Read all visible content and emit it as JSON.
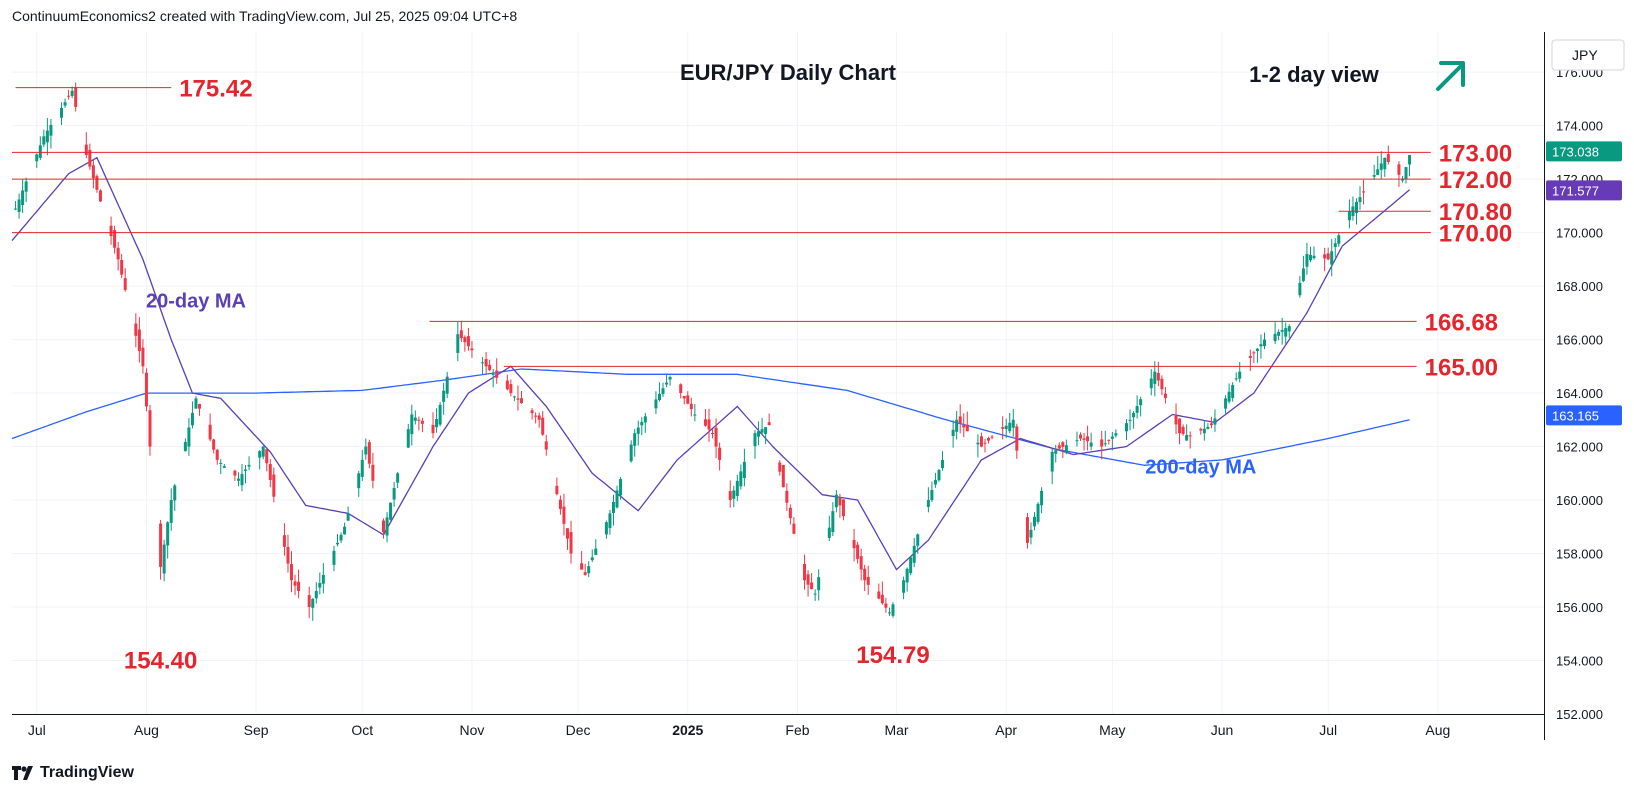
{
  "header": {
    "text": "ContinuumEconomics2 created with TradingView.com, Jul 25, 2025 09:04 UTC+8"
  },
  "footer": {
    "brand": "TradingView"
  },
  "chart_data": {
    "type": "candlestick",
    "title": "EUR/JPY Daily Chart",
    "view_label": "1-2 day view",
    "view_direction": "up",
    "currency_label": "JPY",
    "ylim": [
      152,
      177.5
    ],
    "y_ticks": [
      "152.000",
      "154.000",
      "156.000",
      "158.000",
      "160.000",
      "162.000",
      "164.000",
      "166.000",
      "168.000",
      "170.000",
      "172.000",
      "174.000",
      "176.000"
    ],
    "x_ticks": [
      {
        "label": "Jul",
        "date": "2024-07-01"
      },
      {
        "label": "Aug",
        "date": "2024-08-01"
      },
      {
        "label": "Sep",
        "date": "2024-09-01"
      },
      {
        "label": "Oct",
        "date": "2024-10-01"
      },
      {
        "label": "Nov",
        "date": "2024-11-01"
      },
      {
        "label": "Dec",
        "date": "2024-12-01"
      },
      {
        "label": "2025",
        "date": "2025-01-01",
        "bold": true
      },
      {
        "label": "Feb",
        "date": "2025-02-01"
      },
      {
        "label": "Mar",
        "date": "2025-03-01"
      },
      {
        "label": "Apr",
        "date": "2025-04-01"
      },
      {
        "label": "May",
        "date": "2025-05-01"
      },
      {
        "label": "Jun",
        "date": "2025-06-01"
      },
      {
        "label": "Jul",
        "date": "2025-07-01"
      },
      {
        "label": "Aug",
        "date": "2025-08-01"
      }
    ],
    "x_start": "2024-06-24",
    "x_end": "2025-08-31",
    "price_path": [
      [
        "2024-06-25",
        170.9
      ],
      [
        "2024-07-03",
        173.6
      ],
      [
        "2024-07-11",
        175.3
      ],
      [
        "2024-07-15",
        172.9
      ],
      [
        "2024-07-24",
        169.0
      ],
      [
        "2024-07-31",
        165.0
      ],
      [
        "2024-08-05",
        157.5
      ],
      [
        "2024-08-08",
        160.0
      ],
      [
        "2024-08-15",
        163.8
      ],
      [
        "2024-08-21",
        161.5
      ],
      [
        "2024-08-27",
        160.8
      ],
      [
        "2024-09-03",
        162.0
      ],
      [
        "2024-09-11",
        157.0
      ],
      [
        "2024-09-16",
        156.0
      ],
      [
        "2024-09-26",
        159.0
      ],
      [
        "2024-10-02",
        162.0
      ],
      [
        "2024-10-07",
        158.8
      ],
      [
        "2024-10-15",
        163.2
      ],
      [
        "2024-10-21",
        162.5
      ],
      [
        "2024-10-28",
        166.2
      ],
      [
        "2024-11-05",
        165.0
      ],
      [
        "2024-11-12",
        164.0
      ],
      [
        "2024-11-20",
        163.0
      ],
      [
        "2024-11-29",
        158.0
      ],
      [
        "2024-12-03",
        157.2
      ],
      [
        "2024-12-10",
        159.5
      ],
      [
        "2024-12-17",
        162.5
      ],
      [
        "2024-12-27",
        164.6
      ],
      [
        "2025-01-03",
        163.2
      ],
      [
        "2025-01-08",
        162.5
      ],
      [
        "2025-01-13",
        160.0
      ],
      [
        "2025-01-20",
        162.5
      ],
      [
        "2025-01-24",
        162.8
      ],
      [
        "2025-02-03",
        157.0
      ],
      [
        "2025-02-06",
        156.5
      ],
      [
        "2025-02-12",
        160.2
      ],
      [
        "2025-02-20",
        157.0
      ],
      [
        "2025-02-27",
        155.8
      ],
      [
        "2025-03-03",
        157.0
      ],
      [
        "2025-03-10",
        160.0
      ],
      [
        "2025-03-18",
        163.0
      ],
      [
        "2025-03-25",
        162.0
      ],
      [
        "2025-04-03",
        163.0
      ],
      [
        "2025-04-07",
        158.4
      ],
      [
        "2025-04-14",
        161.8
      ],
      [
        "2025-04-22",
        162.3
      ],
      [
        "2025-04-28",
        162.0
      ],
      [
        "2025-05-06",
        163.0
      ],
      [
        "2025-05-13",
        164.8
      ],
      [
        "2025-05-20",
        162.5
      ],
      [
        "2025-05-23",
        162.4
      ],
      [
        "2025-05-29",
        162.8
      ],
      [
        "2025-06-06",
        164.8
      ],
      [
        "2025-06-13",
        166.0
      ],
      [
        "2025-06-20",
        166.5
      ],
      [
        "2025-06-25",
        169.2
      ],
      [
        "2025-07-01",
        169.0
      ],
      [
        "2025-07-07",
        170.8
      ],
      [
        "2025-07-11",
        171.5
      ],
      [
        "2025-07-17",
        172.8
      ],
      [
        "2025-07-22",
        172.0
      ],
      [
        "2025-07-24",
        172.9
      ]
    ],
    "ma20_path": [
      [
        "2024-06-24",
        169.7
      ],
      [
        "2024-07-10",
        172.2
      ],
      [
        "2024-07-18",
        172.8
      ],
      [
        "2024-07-31",
        169.0
      ],
      [
        "2024-08-08",
        166.0
      ],
      [
        "2024-08-14",
        164.0
      ],
      [
        "2024-08-22",
        163.8
      ],
      [
        "2024-09-05",
        161.8
      ],
      [
        "2024-09-15",
        159.8
      ],
      [
        "2024-09-27",
        159.5
      ],
      [
        "2024-10-07",
        158.7
      ],
      [
        "2024-10-21",
        162.0
      ],
      [
        "2024-10-31",
        164.0
      ],
      [
        "2024-11-12",
        165.0
      ],
      [
        "2024-11-22",
        163.5
      ],
      [
        "2024-12-05",
        161.0
      ],
      [
        "2024-12-18",
        159.6
      ],
      [
        "2024-12-29",
        161.5
      ],
      [
        "2025-01-15",
        163.5
      ],
      [
        "2025-01-25",
        162.0
      ],
      [
        "2025-02-08",
        160.2
      ],
      [
        "2025-02-18",
        160.0
      ],
      [
        "2025-03-01",
        157.4
      ],
      [
        "2025-03-10",
        158.5
      ],
      [
        "2025-03-25",
        161.5
      ],
      [
        "2025-04-05",
        162.3
      ],
      [
        "2025-04-20",
        161.7
      ],
      [
        "2025-05-05",
        162.0
      ],
      [
        "2025-05-18",
        163.2
      ],
      [
        "2025-05-30",
        162.9
      ],
      [
        "2025-06-10",
        164.0
      ],
      [
        "2025-06-25",
        167.0
      ],
      [
        "2025-07-05",
        169.5
      ],
      [
        "2025-07-15",
        170.6
      ],
      [
        "2025-07-24",
        171.6
      ]
    ],
    "ma200_path": [
      [
        "2024-06-24",
        162.3
      ],
      [
        "2024-07-15",
        163.3
      ],
      [
        "2024-08-01",
        164.0
      ],
      [
        "2024-09-01",
        164.0
      ],
      [
        "2024-10-01",
        164.1
      ],
      [
        "2024-10-25",
        164.5
      ],
      [
        "2024-11-15",
        164.9
      ],
      [
        "2024-12-15",
        164.7
      ],
      [
        "2025-01-15",
        164.7
      ],
      [
        "2025-02-15",
        164.1
      ],
      [
        "2025-03-15",
        163.0
      ],
      [
        "2025-04-15",
        161.9
      ],
      [
        "2025-05-10",
        161.3
      ],
      [
        "2025-06-01",
        161.5
      ],
      [
        "2025-07-01",
        162.3
      ],
      [
        "2025-07-24",
        163.0
      ]
    ],
    "levels": [
      {
        "value": 175.42,
        "label": "175.42",
        "from": "2024-06-25",
        "to": "2024-08-08"
      },
      {
        "value": 173.0,
        "label": "173.00",
        "from": "2024-06-24",
        "to": "2025-07-30"
      },
      {
        "value": 172.0,
        "label": "172.00",
        "from": "2024-06-24",
        "to": "2025-07-30"
      },
      {
        "value": 170.8,
        "label": "170.80",
        "from": "2025-07-04",
        "to": "2025-07-30"
      },
      {
        "value": 170.0,
        "label": "170.00",
        "from": "2024-06-24",
        "to": "2025-07-30"
      },
      {
        "value": 166.68,
        "label": "166.68",
        "from": "2024-10-20",
        "to": "2025-07-26"
      },
      {
        "value": 165.0,
        "label": "165.00",
        "from": "2024-11-10",
        "to": "2025-07-26"
      }
    ],
    "annotations": [
      {
        "name": "ma20-label",
        "text": "20-day MA",
        "color": "#5b3fb5",
        "date": "2024-08-15",
        "price": 167.2
      },
      {
        "name": "ma200-label",
        "text": "200-day MA",
        "color": "#2962ff",
        "date": "2025-05-26",
        "price": 161.0
      },
      {
        "name": "low-label-aug",
        "text": "154.40",
        "color": "#e5252c",
        "date": "2024-08-05",
        "price": 153.7
      },
      {
        "name": "low-label-feb",
        "text": "154.79",
        "color": "#e5252c",
        "date": "2025-02-28",
        "price": 153.9
      }
    ],
    "markers": [
      {
        "name": "last-price-marker",
        "value": 173.038,
        "label": "173.038",
        "bg": "#089981",
        "color": "#ffffff"
      },
      {
        "name": "ma20-marker",
        "value": 171.577,
        "label": "171.577",
        "bg": "#673ab7",
        "color": "#ffffff"
      },
      {
        "name": "ma200-marker",
        "value": 163.165,
        "label": "163.165",
        "bg": "#2962ff",
        "color": "#ffffff"
      }
    ],
    "colors": {
      "up": "#089981",
      "down": "#f23645",
      "ma20": "#5b3fb5",
      "ma200": "#2962ff",
      "levels": "#e5252c",
      "grid": "#f0f3fa",
      "arrow": "#089981"
    }
  }
}
